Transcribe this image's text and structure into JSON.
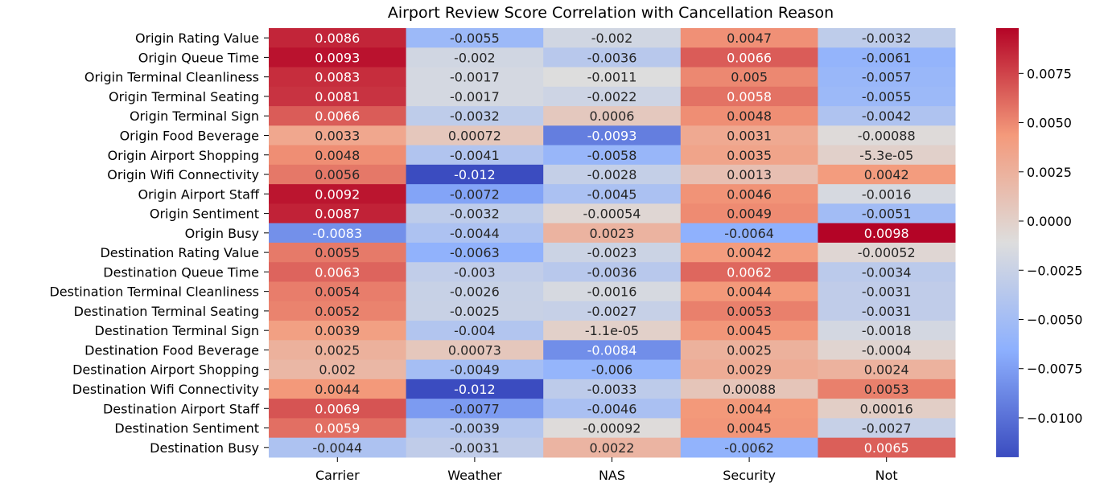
{
  "chart_data": {
    "type": "heatmap",
    "title": "Airport Review Score Correlation with Cancellation Reason",
    "xlabel": "",
    "ylabel": "",
    "columns": [
      "Carrier",
      "Weather",
      "NAS",
      "Security",
      "Not"
    ],
    "rows": [
      "Origin Rating Value",
      "Origin Queue Time",
      "Origin Terminal Cleanliness",
      "Origin Terminal Seating",
      "Origin Terminal Sign",
      "Origin Food Beverage",
      "Origin Airport Shopping",
      "Origin Wifi Connectivity",
      "Origin Airport Staff",
      "Origin Sentiment",
      "Origin Busy",
      "Destination Rating Value",
      "Destination Queue Time",
      "Destination Terminal Cleanliness",
      "Destination Terminal Seating",
      "Destination Terminal Sign",
      "Destination Food Beverage",
      "Destination Airport Shopping",
      "Destination Wifi Connectivity",
      "Destination Airport Staff",
      "Destination Sentiment",
      "Destination Busy"
    ],
    "values": [
      [
        0.0086,
        -0.0055,
        -0.002,
        0.0047,
        -0.0032
      ],
      [
        0.0093,
        -0.002,
        -0.0036,
        0.0066,
        -0.0061
      ],
      [
        0.0083,
        -0.0017,
        -0.0011,
        0.005,
        -0.0057
      ],
      [
        0.0081,
        -0.0017,
        -0.0022,
        0.0058,
        -0.0055
      ],
      [
        0.0066,
        -0.0032,
        0.0006,
        0.0048,
        -0.0042
      ],
      [
        0.0033,
        0.00072,
        -0.0093,
        0.0031,
        -0.00088
      ],
      [
        0.0048,
        -0.0041,
        -0.0058,
        0.0035,
        -5.3e-05
      ],
      [
        0.0056,
        -0.012,
        -0.0028,
        0.0013,
        0.0042
      ],
      [
        0.0092,
        -0.0072,
        -0.0045,
        0.0046,
        -0.0016
      ],
      [
        0.0087,
        -0.0032,
        -0.00054,
        0.0049,
        -0.0051
      ],
      [
        -0.0083,
        -0.0044,
        0.0023,
        -0.0064,
        0.0098
      ],
      [
        0.0055,
        -0.0063,
        -0.0023,
        0.0042,
        -0.00052
      ],
      [
        0.0063,
        -0.003,
        -0.0036,
        0.0062,
        -0.0034
      ],
      [
        0.0054,
        -0.0026,
        -0.0016,
        0.0044,
        -0.0031
      ],
      [
        0.0052,
        -0.0025,
        -0.0027,
        0.0053,
        -0.0031
      ],
      [
        0.0039,
        -0.004,
        -1.1e-05,
        0.0045,
        -0.0018
      ],
      [
        0.0025,
        0.00073,
        -0.0084,
        0.0025,
        -0.0004
      ],
      [
        0.002,
        -0.0049,
        -0.006,
        0.0029,
        0.0024
      ],
      [
        0.0044,
        -0.012,
        -0.0033,
        0.00088,
        0.0053
      ],
      [
        0.0069,
        -0.0077,
        -0.0046,
        0.0044,
        0.00016
      ],
      [
        0.0059,
        -0.0039,
        -0.00092,
        0.0045,
        -0.0027
      ],
      [
        -0.0044,
        -0.0031,
        0.0022,
        -0.0062,
        0.0065
      ]
    ],
    "labels": [
      [
        "0.0086",
        "-0.0055",
        "-0.002",
        "0.0047",
        "-0.0032"
      ],
      [
        "0.0093",
        "-0.002",
        "-0.0036",
        "0.0066",
        "-0.0061"
      ],
      [
        "0.0083",
        "-0.0017",
        "-0.0011",
        "0.005",
        "-0.0057"
      ],
      [
        "0.0081",
        "-0.0017",
        "-0.0022",
        "0.0058",
        "-0.0055"
      ],
      [
        "0.0066",
        "-0.0032",
        "0.0006",
        "0.0048",
        "-0.0042"
      ],
      [
        "0.0033",
        "0.00072",
        "-0.0093",
        "0.0031",
        "-0.00088"
      ],
      [
        "0.0048",
        "-0.0041",
        "-0.0058",
        "0.0035",
        "-5.3e-05"
      ],
      [
        "0.0056",
        "-0.012",
        "-0.0028",
        "0.0013",
        "0.0042"
      ],
      [
        "0.0092",
        "-0.0072",
        "-0.0045",
        "0.0046",
        "-0.0016"
      ],
      [
        "0.0087",
        "-0.0032",
        "-0.00054",
        "0.0049",
        "-0.0051"
      ],
      [
        "-0.0083",
        "-0.0044",
        "0.0023",
        "-0.0064",
        "0.0098"
      ],
      [
        "0.0055",
        "-0.0063",
        "-0.0023",
        "0.0042",
        "-0.00052"
      ],
      [
        "0.0063",
        "-0.003",
        "-0.0036",
        "0.0062",
        "-0.0034"
      ],
      [
        "0.0054",
        "-0.0026",
        "-0.0016",
        "0.0044",
        "-0.0031"
      ],
      [
        "0.0052",
        "-0.0025",
        "-0.0027",
        "0.0053",
        "-0.0031"
      ],
      [
        "0.0039",
        "-0.004",
        "-1.1e-05",
        "0.0045",
        "-0.0018"
      ],
      [
        "0.0025",
        "0.00073",
        "-0.0084",
        "0.0025",
        "-0.0004"
      ],
      [
        "0.002",
        "-0.0049",
        "-0.006",
        "0.0029",
        "0.0024"
      ],
      [
        "0.0044",
        "-0.012",
        "-0.0033",
        "0.00088",
        "0.0053"
      ],
      [
        "0.0069",
        "-0.0077",
        "-0.0046",
        "0.0044",
        "0.00016"
      ],
      [
        "0.0059",
        "-0.0039",
        "-0.00092",
        "0.0045",
        "-0.0027"
      ],
      [
        "-0.0044",
        "-0.0031",
        "0.0022",
        "-0.0062",
        "0.0065"
      ]
    ],
    "colormap": "coolwarm",
    "vmin": -0.012,
    "vmax": 0.0098,
    "colorbar": {
      "ticks": [
        0.0075,
        0.005,
        0.0025,
        0.0,
        -0.0025,
        -0.005,
        -0.0075,
        -0.01
      ],
      "tick_labels": [
        "0.0075",
        "0.0050",
        "0.0025",
        "0.0000",
        "−0.0025",
        "−0.0050",
        "−0.0075",
        "−0.0100"
      ],
      "placement": "right"
    },
    "colors": {
      "cold": "#3b4cc0",
      "neutral": "#dddddd",
      "hot": "#b40426"
    }
  }
}
